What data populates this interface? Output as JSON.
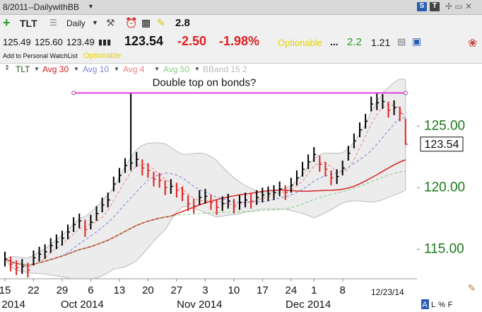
{
  "window": {
    "title": "8/2011--DailywithBB"
  },
  "toolbar": {
    "symbol": "TLT",
    "period": "Daily",
    "value": "2.8"
  },
  "quote": {
    "open": "125.49",
    "high": "125.60",
    "low": "123.49",
    "last": "123.54",
    "change": "-2.50",
    "change_pct": "-1.98%",
    "optionable": "Optionable",
    "dots": "...",
    "v1": "2.2",
    "v2": "1.21",
    "watchlist": "Add to Personal WatchList",
    "optionable2": "Optionable"
  },
  "chart_data": {
    "type": "ohlc",
    "symbol": "TLT",
    "high": [
      114.8,
      114.4,
      114.1,
      114.2,
      113.9,
      114.9,
      115.2,
      115.4,
      115.9,
      116.2,
      116.5,
      117.0,
      117.6,
      117.9,
      117.4,
      117.8,
      118.5,
      119.2,
      119.6,
      120.9,
      121.6,
      122.4,
      127.7,
      122.9,
      122.3,
      122.0,
      121.3,
      121.2,
      120.6,
      120.7,
      120.4,
      120.1,
      119.4,
      119.1,
      119.8,
      119.9,
      119.4,
      119.0,
      119.3,
      119.5,
      119.1,
      119.4,
      119.6,
      119.5,
      119.8,
      120.0,
      120.1,
      120.2,
      120.5,
      120.2,
      120.8,
      121.4,
      122.1,
      122.7,
      123.3,
      122.6,
      122.1,
      121.4,
      121.5,
      122.2,
      123.4,
      124.4,
      125.3,
      126.0,
      127.4,
      127.7,
      127.6,
      127.0,
      127.1,
      126.6,
      125.6
    ],
    "low": [
      113.6,
      113.2,
      112.9,
      113.0,
      112.7,
      113.7,
      114.0,
      114.2,
      114.7,
      115.0,
      115.3,
      115.8,
      116.4,
      116.7,
      116.0,
      116.6,
      117.3,
      118.0,
      118.4,
      119.7,
      120.4,
      121.2,
      121.4,
      121.7,
      121.0,
      120.8,
      120.1,
      120.0,
      119.4,
      119.5,
      119.2,
      118.9,
      118.1,
      117.9,
      118.6,
      118.7,
      118.2,
      117.8,
      118.1,
      118.3,
      117.9,
      118.2,
      118.4,
      118.3,
      118.6,
      118.8,
      118.9,
      119.0,
      119.3,
      119.0,
      119.6,
      120.2,
      120.9,
      121.5,
      122.1,
      121.3,
      120.9,
      120.2,
      120.3,
      121.0,
      122.2,
      123.2,
      124.1,
      124.8,
      126.2,
      126.3,
      126.4,
      125.7,
      125.9,
      125.4,
      123.49
    ],
    "close": [
      114.2,
      113.8,
      113.5,
      113.6,
      113.3,
      114.3,
      114.6,
      114.8,
      115.3,
      115.6,
      115.9,
      116.4,
      117.0,
      117.3,
      116.6,
      117.2,
      117.9,
      118.6,
      119.0,
      120.3,
      121.0,
      121.8,
      122.0,
      122.3,
      121.6,
      121.4,
      120.7,
      120.6,
      120.0,
      120.1,
      119.8,
      119.5,
      118.7,
      118.5,
      119.2,
      119.3,
      118.8,
      118.4,
      118.7,
      118.9,
      118.5,
      118.8,
      119.0,
      118.9,
      119.2,
      119.4,
      119.5,
      119.6,
      119.9,
      119.6,
      120.2,
      120.8,
      121.5,
      122.1,
      122.7,
      121.9,
      121.5,
      120.8,
      120.9,
      121.6,
      122.8,
      123.8,
      124.7,
      125.4,
      126.8,
      126.9,
      127.0,
      126.3,
      126.5,
      126.04,
      123.54
    ],
    "up_color": "#000000",
    "down_color": "#e02020",
    "indicators": [
      {
        "name": "Avg 30",
        "period": 30,
        "color": "#d62020",
        "dashed": false
      },
      {
        "name": "Avg 10",
        "period": 10,
        "color": "#8080e0",
        "dashed": true
      },
      {
        "name": "Avg 4",
        "period": 4,
        "color": "#f08080",
        "dashed": true
      },
      {
        "name": "Avg 50",
        "period": 50,
        "color": "#80d080",
        "dashed": true
      }
    ],
    "bband": {
      "name": "BBand 15 2",
      "period": 15,
      "width": 2
    },
    "ylim": [
      112.6,
      129.1
    ],
    "yticks": [
      {
        "value": 115,
        "label": "115.00"
      },
      {
        "value": 120,
        "label": "120.00"
      },
      {
        "value": 125,
        "label": "125.00"
      }
    ],
    "last_value": 123.54,
    "xlim": [
      -0.86,
      72
    ],
    "xticks": [
      {
        "value": 0,
        "label": "15"
      },
      {
        "value": 5,
        "label": "22"
      },
      {
        "value": 10,
        "label": "29"
      },
      {
        "value": 15,
        "label": "6"
      },
      {
        "value": 20,
        "label": "13"
      },
      {
        "value": 25,
        "label": "20"
      },
      {
        "value": 30,
        "label": "27"
      },
      {
        "value": 35,
        "label": "3"
      },
      {
        "value": 40,
        "label": "10"
      },
      {
        "value": 45,
        "label": "17"
      },
      {
        "value": 50,
        "label": "24"
      },
      {
        "value": 54,
        "label": "1"
      },
      {
        "value": 59,
        "label": "8"
      }
    ],
    "month_ticks": [
      {
        "value": 1.5,
        "label": "2014"
      },
      {
        "value": 13.5,
        "label": "Oct 2014"
      },
      {
        "value": 34,
        "label": "Nov 2014"
      },
      {
        "value": 53,
        "label": "Dec 2014"
      }
    ],
    "annotation": {
      "text": "Double top on bonds?",
      "value": 127.7,
      "x": [
        12,
        70
      ]
    },
    "date_label": "12/23/14",
    "footer_buttons": [
      "A",
      "L",
      "%",
      "F"
    ]
  }
}
